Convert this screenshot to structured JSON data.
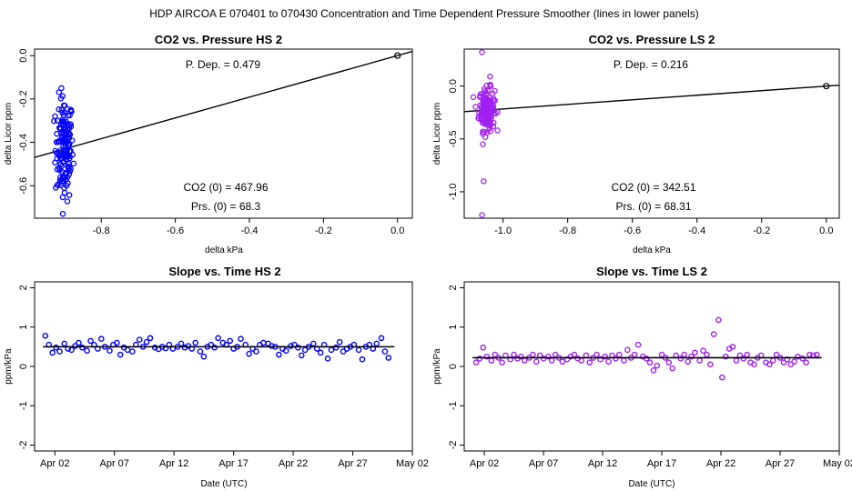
{
  "page_title": "HDP    AIRCOA E    070401 to 070430    Concentration and Time Dependent Pressure Smoother (lines in lower panels)",
  "colors": {
    "hs": "#0000ff",
    "ls": "#a020f0",
    "fit": "#000000"
  },
  "chart_data": [
    {
      "type": "scatter",
      "title": "CO2 vs. Pressure HS 2",
      "xlabel": "delta kPa",
      "ylabel": "delta Licor ppm",
      "xlim": [
        -0.98,
        0.04
      ],
      "ylim": [
        -0.75,
        0.03
      ],
      "xticks": [
        -0.8,
        -0.6,
        -0.4,
        -0.2,
        0.0
      ],
      "xtick_labels": [
        "-0.8",
        "-0.6",
        "-0.4",
        "-0.2",
        "0.0"
      ],
      "yticks": [
        0.0,
        -0.2,
        -0.4,
        -0.6
      ],
      "ytick_labels": [
        "0.0",
        "-0.2",
        "-0.4",
        "-0.6"
      ],
      "annotations": {
        "p_dep": "P. Dep. =  0.479",
        "co2_0": "CO2 (0) =  467.96",
        "prs_0": "Prs. (0) =  68.3"
      },
      "fit_line": {
        "slope": 0.479,
        "intercept": 0.0,
        "x": [
          -0.98,
          0.04
        ]
      },
      "origin_point": [
        0.0,
        0.0
      ],
      "cluster": {
        "x_center": -0.9,
        "x_sd": 0.012,
        "y_center": -0.43,
        "y_sd": 0.12,
        "y_min": -0.73,
        "y_max": -0.15,
        "n": 150
      }
    },
    {
      "type": "scatter",
      "title": "CO2 vs. Pressure LS 2",
      "xlabel": "delta kPa",
      "ylabel": "delta Licor ppm",
      "xlim": [
        -1.12,
        0.04
      ],
      "ylim": [
        -1.25,
        0.35
      ],
      "xticks": [
        -1.0,
        -0.8,
        -0.6,
        -0.4,
        -0.2,
        0.0
      ],
      "xtick_labels": [
        "-1.0",
        "-0.8",
        "-0.6",
        "-0.4",
        "-0.2",
        "0.0"
      ],
      "yticks": [
        0.0,
        -0.5,
        -1.0
      ],
      "ytick_labels": [
        "0.0",
        "-0.5",
        "-1.0"
      ],
      "annotations": {
        "p_dep": "P. Dep. =  0.216",
        "co2_0": "CO2 (0) =  342.51",
        "prs_0": "Prs. (0) =  68.31"
      },
      "fit_line": {
        "slope": 0.216,
        "intercept": 0.0,
        "x": [
          -1.12,
          0.04
        ]
      },
      "origin_point": [
        0.0,
        0.0
      ],
      "cluster": {
        "x_center": -1.05,
        "x_sd": 0.012,
        "y_center": -0.22,
        "y_sd": 0.1,
        "y_min": -0.55,
        "y_max": 0.1,
        "n": 150,
        "outliers": [
          [
            -1.065,
            0.32
          ],
          [
            -1.06,
            -0.9
          ],
          [
            -1.065,
            -1.22
          ],
          [
            -1.04,
            0.09
          ]
        ]
      }
    },
    {
      "type": "scatter",
      "title": "Slope vs. Time HS 2",
      "xlabel": "Date (UTC)",
      "ylabel": "ppm/kPa",
      "xlim": [
        -0.7,
        31.0
      ],
      "ylim": [
        -2.15,
        2.15
      ],
      "xticks": [
        1,
        6,
        11,
        16,
        21,
        26,
        31
      ],
      "xtick_labels": [
        "Apr 02",
        "Apr 07",
        "Apr 12",
        "Apr 17",
        "Apr 22",
        "Apr 27",
        "May 02"
      ],
      "yticks": [
        -2,
        -1,
        0,
        1,
        2
      ],
      "ytick_labels": [
        "-2",
        "-1",
        "0",
        "1",
        "2"
      ],
      "x": [
        0.2,
        0.5,
        0.8,
        1.1,
        1.4,
        1.8,
        2.1,
        2.4,
        2.7,
        3.0,
        3.3,
        3.7,
        4.0,
        4.3,
        4.6,
        4.9,
        5.2,
        5.6,
        5.9,
        6.2,
        6.5,
        6.8,
        7.1,
        7.5,
        7.8,
        8.1,
        8.4,
        8.7,
        9.0,
        9.4,
        9.7,
        10.0,
        10.3,
        10.6,
        10.9,
        11.3,
        11.6,
        11.9,
        12.2,
        12.5,
        12.8,
        13.2,
        13.5,
        13.8,
        14.1,
        14.4,
        14.7,
        15.1,
        15.4,
        15.7,
        16.0,
        16.3,
        16.6,
        17.0,
        17.3,
        17.6,
        17.9,
        18.2,
        18.5,
        18.9,
        19.2,
        19.5,
        19.8,
        20.1,
        20.4,
        20.8,
        21.1,
        21.4,
        21.7,
        22.0,
        22.3,
        22.7,
        23.0,
        23.3,
        23.6,
        23.9,
        24.2,
        24.6,
        24.9,
        25.2,
        25.5,
        25.8,
        26.1,
        26.5,
        26.8,
        27.1,
        27.4,
        27.7,
        28.0,
        28.4,
        28.7,
        29.0
      ],
      "values": [
        0.78,
        0.55,
        0.35,
        0.48,
        0.38,
        0.58,
        0.45,
        0.42,
        0.52,
        0.6,
        0.48,
        0.4,
        0.65,
        0.55,
        0.45,
        0.7,
        0.5,
        0.4,
        0.55,
        0.6,
        0.3,
        0.48,
        0.42,
        0.38,
        0.55,
        0.68,
        0.5,
        0.62,
        0.72,
        0.48,
        0.44,
        0.5,
        0.46,
        0.55,
        0.45,
        0.5,
        0.58,
        0.48,
        0.52,
        0.45,
        0.6,
        0.38,
        0.25,
        0.5,
        0.55,
        0.48,
        0.72,
        0.6,
        0.55,
        0.65,
        0.45,
        0.5,
        0.7,
        0.55,
        0.32,
        0.45,
        0.38,
        0.55,
        0.6,
        0.58,
        0.52,
        0.5,
        0.3,
        0.45,
        0.4,
        0.52,
        0.55,
        0.48,
        0.28,
        0.42,
        0.5,
        0.58,
        0.45,
        0.35,
        0.55,
        0.2,
        0.42,
        0.48,
        0.62,
        0.38,
        0.45,
        0.5,
        0.55,
        0.42,
        0.18,
        0.5,
        0.55,
        0.45,
        0.58,
        0.72,
        0.38,
        0.22
      ],
      "smoother": {
        "x": [
          0.0,
          29.5
        ],
        "values": [
          0.5,
          0.5
        ]
      }
    },
    {
      "type": "scatter",
      "title": "Slope vs. Time LS 2",
      "xlabel": "Date (UTC)",
      "ylabel": "ppm/kPa",
      "xlim": [
        -0.7,
        31.0
      ],
      "ylim": [
        -2.15,
        2.15
      ],
      "xticks": [
        1,
        6,
        11,
        16,
        21,
        26,
        31
      ],
      "xtick_labels": [
        "Apr 02",
        "Apr 07",
        "Apr 12",
        "Apr 17",
        "Apr 22",
        "Apr 27",
        "May 02"
      ],
      "yticks": [
        -2,
        -1,
        0,
        1,
        2
      ],
      "ytick_labels": [
        "-2",
        "-1",
        "0",
        "1",
        "2"
      ],
      "x": [
        0.3,
        0.6,
        0.9,
        1.2,
        1.6,
        1.9,
        2.2,
        2.5,
        2.8,
        3.2,
        3.5,
        3.8,
        4.1,
        4.4,
        4.8,
        5.1,
        5.4,
        5.7,
        6.0,
        6.4,
        6.7,
        7.0,
        7.3,
        7.6,
        8.0,
        8.3,
        8.6,
        8.9,
        9.2,
        9.6,
        9.9,
        10.2,
        10.5,
        10.8,
        11.2,
        11.5,
        11.8,
        12.1,
        12.4,
        12.8,
        13.1,
        13.4,
        13.7,
        14.0,
        14.4,
        14.7,
        15.0,
        15.3,
        15.6,
        16.0,
        16.3,
        16.6,
        16.9,
        17.2,
        17.6,
        17.9,
        18.2,
        18.5,
        18.8,
        19.2,
        19.5,
        19.8,
        20.1,
        20.4,
        20.8,
        21.1,
        21.4,
        21.7,
        22.0,
        22.3,
        22.6,
        22.9,
        23.2,
        23.5,
        23.8,
        24.1,
        24.4,
        24.8,
        25.1,
        25.4,
        25.7,
        26.0,
        26.3,
        26.6,
        26.9,
        27.2,
        27.5,
        27.9,
        28.2,
        28.5,
        28.8,
        29.1
      ],
      "values": [
        0.1,
        0.2,
        0.48,
        0.25,
        0.15,
        0.3,
        0.22,
        0.1,
        0.28,
        0.18,
        0.3,
        0.2,
        0.25,
        0.15,
        0.22,
        0.3,
        0.12,
        0.28,
        0.2,
        0.25,
        0.15,
        0.3,
        0.22,
        0.12,
        0.18,
        0.25,
        0.3,
        0.2,
        0.15,
        0.28,
        0.1,
        0.22,
        0.3,
        0.18,
        0.25,
        0.12,
        0.28,
        0.2,
        0.3,
        0.15,
        0.42,
        0.22,
        0.3,
        0.55,
        0.25,
        0.2,
        0.1,
        -0.1,
        0.02,
        0.3,
        0.22,
        0.1,
        -0.05,
        0.28,
        0.2,
        0.3,
        0.12,
        0.25,
        0.35,
        0.15,
        0.4,
        0.3,
        0.05,
        0.82,
        1.18,
        -0.28,
        0.25,
        0.45,
        0.5,
        0.15,
        0.28,
        0.2,
        0.3,
        0.1,
        0.05,
        0.22,
        0.28,
        0.1,
        0.05,
        0.15,
        0.3,
        0.22,
        0.1,
        0.18,
        0.05,
        0.12,
        0.25,
        0.2,
        0.1,
        0.3,
        0.28,
        0.3
      ],
      "smoother": {
        "x": [
          0.0,
          29.5
        ],
        "values": [
          0.22,
          0.22
        ]
      }
    }
  ]
}
